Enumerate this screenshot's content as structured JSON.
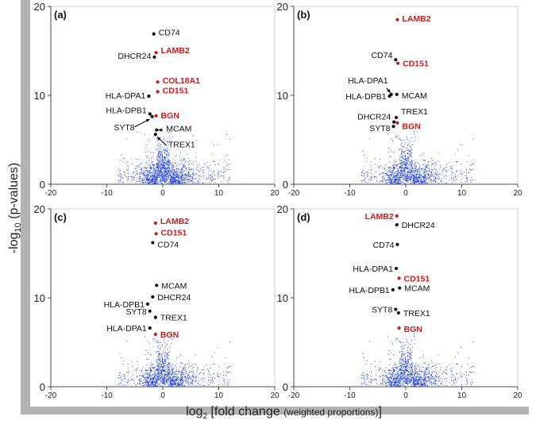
{
  "figure": {
    "y_axis_label_pre": "-log",
    "y_axis_label_sub": "10",
    "y_axis_label_post": " (p-values)",
    "x_axis_label_pre": "log",
    "x_axis_label_sub": "2",
    "x_axis_label_main": " [fold change ",
    "x_axis_label_small": "(weighted proportions)",
    "x_axis_label_end": "]"
  },
  "colors": {
    "highlight": "#cc1a1a",
    "normal": "#111111",
    "scatter": "#1f3fe0",
    "frame": "#b3b3b3"
  },
  "chart_data": [
    {
      "panel": "(a)",
      "type": "scatter",
      "xlim": [
        -20,
        20
      ],
      "ylim": [
        0,
        20
      ],
      "xticks": [
        -20,
        -10,
        0,
        10,
        20
      ],
      "yticks": [
        0,
        10,
        20
      ],
      "points": [
        {
          "label": "CD74",
          "x": -1.6,
          "y": 16.9,
          "highlight": false
        },
        {
          "label": "DHCR24",
          "x": -1.5,
          "y": 14.3,
          "highlight": false
        },
        {
          "label": "LAMB2",
          "x": -1.2,
          "y": 14.8,
          "highlight": true
        },
        {
          "label": "COL18A1",
          "x": -0.9,
          "y": 11.5,
          "highlight": true
        },
        {
          "label": "HLA-DPA1",
          "x": -2.5,
          "y": 9.9,
          "highlight": false
        },
        {
          "label": "CD151",
          "x": -0.9,
          "y": 10.4,
          "highlight": true
        },
        {
          "label": "HLA-DPB1",
          "x": -2.3,
          "y": 7.9,
          "highlight": false
        },
        {
          "label": "BGN",
          "x": -1.2,
          "y": 7.7,
          "highlight": true
        },
        {
          "label": "SYT8",
          "x": -1.9,
          "y": 7.6,
          "highlight": false
        },
        {
          "label": "MCAM",
          "x": -1.1,
          "y": 6.1,
          "highlight": false
        },
        {
          "label": "TREX1",
          "x": -1.3,
          "y": 5.6,
          "highlight": false
        }
      ]
    },
    {
      "panel": "(b)",
      "type": "scatter",
      "xlim": [
        -20,
        20
      ],
      "ylim": [
        0,
        20
      ],
      "xticks": [
        -20,
        -10,
        0,
        10,
        20
      ],
      "yticks": [
        0,
        10,
        20
      ],
      "points": [
        {
          "label": "LAMB2",
          "x": -1.5,
          "y": 18.5,
          "highlight": true
        },
        {
          "label": "CD74",
          "x": -1.8,
          "y": 14.0,
          "highlight": false
        },
        {
          "label": "CD151",
          "x": -1.4,
          "y": 13.6,
          "highlight": true
        },
        {
          "label": "HLA-DPA1",
          "x": -2.6,
          "y": 10.1,
          "highlight": false
        },
        {
          "label": "HLA-DPB1",
          "x": -2.9,
          "y": 9.9,
          "highlight": false
        },
        {
          "label": "MCAM",
          "x": -1.6,
          "y": 10.1,
          "highlight": false
        },
        {
          "label": "TREX1",
          "x": -1.7,
          "y": 7.5,
          "highlight": false
        },
        {
          "label": "DHCR24",
          "x": -2.1,
          "y": 7.0,
          "highlight": false
        },
        {
          "label": "SYT8",
          "x": -2.2,
          "y": 6.5,
          "highlight": false
        },
        {
          "label": "BGN",
          "x": -1.5,
          "y": 6.9,
          "highlight": true
        }
      ]
    },
    {
      "panel": "(c)",
      "type": "scatter",
      "xlim": [
        -20,
        20
      ],
      "ylim": [
        0,
        20
      ],
      "xticks": [
        -20,
        -10,
        0,
        10,
        20
      ],
      "yticks": [
        0,
        10,
        20
      ],
      "points": [
        {
          "label": "LAMB2",
          "x": -1.3,
          "y": 18.4,
          "highlight": true
        },
        {
          "label": "CD151",
          "x": -1.2,
          "y": 17.2,
          "highlight": true
        },
        {
          "label": "CD74",
          "x": -1.8,
          "y": 16.2,
          "highlight": false
        },
        {
          "label": "MCAM",
          "x": -1.1,
          "y": 11.4,
          "highlight": false
        },
        {
          "label": "DHCR24",
          "x": -1.8,
          "y": 10.1,
          "highlight": false
        },
        {
          "label": "HLA-DPB1",
          "x": -2.7,
          "y": 9.3,
          "highlight": false
        },
        {
          "label": "SYT8",
          "x": -2.3,
          "y": 8.5,
          "highlight": false
        },
        {
          "label": "TREX1",
          "x": -1.3,
          "y": 7.8,
          "highlight": false
        },
        {
          "label": "HLA-DPA1",
          "x": -2.3,
          "y": 6.6,
          "highlight": false
        },
        {
          "label": "BGN",
          "x": -1.3,
          "y": 5.9,
          "highlight": true
        }
      ]
    },
    {
      "panel": "(d)",
      "type": "scatter",
      "xlim": [
        -20,
        20
      ],
      "ylim": [
        0,
        20
      ],
      "xticks": [
        -20,
        -10,
        0,
        10,
        20
      ],
      "yticks": [
        0,
        10,
        20
      ],
      "points": [
        {
          "label": "LAMB2",
          "x": -1.6,
          "y": 19.2,
          "highlight": true
        },
        {
          "label": "DHCR24",
          "x": -1.6,
          "y": 18.2,
          "highlight": false
        },
        {
          "label": "CD74",
          "x": -1.5,
          "y": 16.0,
          "highlight": false
        },
        {
          "label": "HLA-DPA1",
          "x": -1.7,
          "y": 13.3,
          "highlight": false
        },
        {
          "label": "CD151",
          "x": -1.2,
          "y": 12.2,
          "highlight": true
        },
        {
          "label": "HLA-DPB1",
          "x": -2.3,
          "y": 10.9,
          "highlight": false
        },
        {
          "label": "MCAM",
          "x": -1.1,
          "y": 11.1,
          "highlight": false
        },
        {
          "label": "SYT8",
          "x": -1.8,
          "y": 8.7,
          "highlight": false
        },
        {
          "label": "TREX1",
          "x": -1.3,
          "y": 8.3,
          "highlight": false
        },
        {
          "label": "BGN",
          "x": -1.2,
          "y": 6.6,
          "highlight": true
        }
      ]
    }
  ]
}
